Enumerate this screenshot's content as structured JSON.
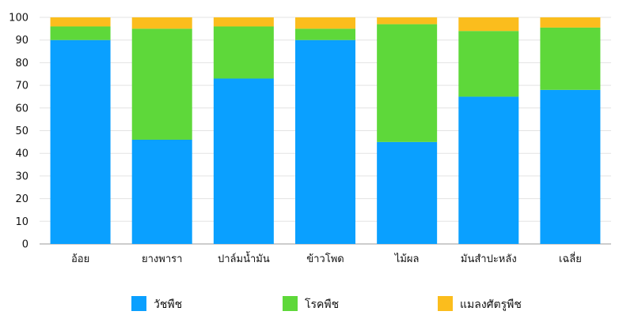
{
  "chart_data": {
    "type": "bar",
    "stacked": true,
    "categories": [
      "อ้อย",
      "ยางพารา",
      "ปาล์มน้ำมัน",
      "ข้าวโพด",
      "ไม้ผล",
      "มันสำปะหลัง",
      "เฉลี่ย"
    ],
    "series": [
      {
        "name": "วัชพืช",
        "color": "#0aa0ff",
        "values": [
          90,
          46,
          73,
          90,
          45,
          65,
          68
        ]
      },
      {
        "name": "โรคพืช",
        "color": "#5ed83a",
        "values": [
          6,
          49,
          23,
          5,
          52,
          29,
          27.5
        ]
      },
      {
        "name": "แมลงศัตรูพืช",
        "color": "#fbbd1d",
        "values": [
          4,
          5,
          4,
          5,
          3,
          6,
          4.5
        ]
      }
    ],
    "ylim": [
      0,
      100
    ],
    "yticks": [
      0,
      10,
      20,
      30,
      40,
      50,
      60,
      70,
      80,
      90,
      100
    ],
    "title": "",
    "xlabel": "",
    "ylabel": "",
    "grid": true,
    "legend_position": "bottom"
  }
}
